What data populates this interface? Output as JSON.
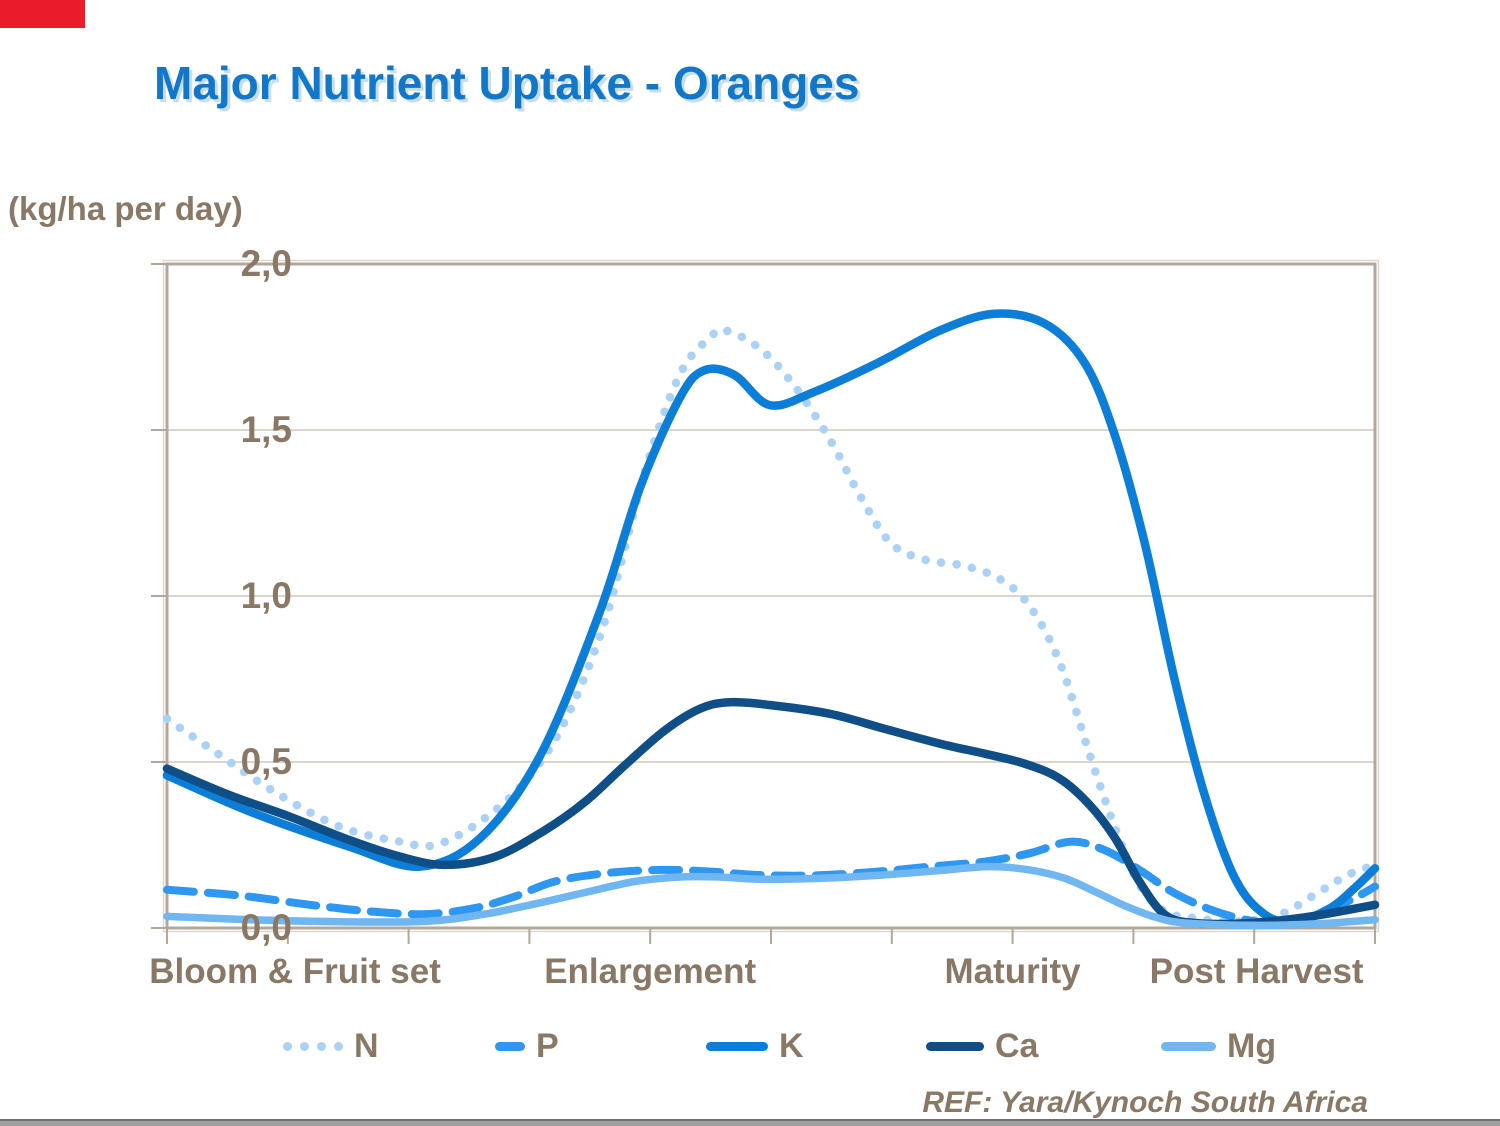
{
  "header": {
    "title": "Major Nutrient Uptake - Oranges"
  },
  "axis": {
    "unit_label": "(kg/ha per day)"
  },
  "footer": {
    "ref": "REF: Yara/Kynoch South Africa"
  },
  "colors": {
    "title_blue": "#1277c9",
    "text_brown": "#8a7866",
    "plot_border": "#b1a79a",
    "plot_border_outer": "#ddd7cd",
    "grid_line": "#cfc7bc",
    "footer_bar_dark": "#6f6f6f",
    "footer_bar_light": "#a0a0a0",
    "brand_block_red": "#ea1c2c"
  },
  "legend": {
    "items": [
      {
        "label": "N",
        "series": "N"
      },
      {
        "label": "P",
        "series": "P"
      },
      {
        "label": "K",
        "series": "K"
      },
      {
        "label": "Ca",
        "series": "Ca"
      },
      {
        "label": "Mg",
        "series": "Mg"
      }
    ]
  },
  "chart_data": {
    "type": "line",
    "title": "Major Nutrient Uptake - Oranges",
    "xlabel": "",
    "ylabel": "(kg/ha per day)",
    "ylim": [
      0,
      2.0
    ],
    "ytick_values": [
      0,
      0.5,
      1.0,
      1.5,
      2.0
    ],
    "ytick_labels": [
      "0,0",
      "0,5",
      "1,0",
      "1,5",
      "2,0"
    ],
    "grid_values": [
      0.5,
      1.0,
      1.5
    ],
    "grid": true,
    "legend_position": "bottom",
    "x_axis": {
      "range_percent": [
        0,
        100
      ],
      "minor_tick_step_percent": 10,
      "stages": [
        {
          "label": "Bloom & Fruit set",
          "center_percent": 10.6
        },
        {
          "label": "Enlargement",
          "center_percent": 40.0
        },
        {
          "label": "Maturity",
          "center_percent": 70.0
        },
        {
          "label": "Post Harvest",
          "center_percent": 90.2
        }
      ]
    },
    "series": [
      {
        "name": "N",
        "color": "#abd2f5",
        "style": "dotted",
        "points": [
          [
            0,
            0.63
          ],
          [
            4,
            0.53
          ],
          [
            8.9,
            0.41
          ],
          [
            14.3,
            0.305
          ],
          [
            19.3,
            0.26
          ],
          [
            22.2,
            0.25
          ],
          [
            25.9,
            0.32
          ],
          [
            29.6,
            0.44
          ],
          [
            32.9,
            0.62
          ],
          [
            36.3,
            0.93
          ],
          [
            39.6,
            1.38
          ],
          [
            42.5,
            1.67
          ],
          [
            45,
            1.78
          ],
          [
            46.2,
            1.8
          ],
          [
            49.1,
            1.745
          ],
          [
            52,
            1.63
          ],
          [
            54.9,
            1.47
          ],
          [
            57.4,
            1.3
          ],
          [
            59.9,
            1.16
          ],
          [
            62.7,
            1.11
          ],
          [
            66.1,
            1.09
          ],
          [
            69,
            1.05
          ],
          [
            71.4,
            0.97
          ],
          [
            73.9,
            0.8
          ],
          [
            76.4,
            0.52
          ],
          [
            78.5,
            0.3
          ],
          [
            80.5,
            0.13
          ],
          [
            82.6,
            0.05
          ],
          [
            85.1,
            0.03
          ],
          [
            88.8,
            0.02
          ],
          [
            92.1,
            0.04
          ],
          [
            95,
            0.1
          ],
          [
            97.5,
            0.155
          ],
          [
            99.2,
            0.18
          ],
          [
            100,
            0.185
          ]
        ]
      },
      {
        "name": "P",
        "color": "#2e97f2",
        "style": "dashed",
        "points": [
          [
            0,
            0.115
          ],
          [
            6,
            0.098
          ],
          [
            11.8,
            0.07
          ],
          [
            16.8,
            0.05
          ],
          [
            21.4,
            0.042
          ],
          [
            25.5,
            0.06
          ],
          [
            28.8,
            0.095
          ],
          [
            32.1,
            0.14
          ],
          [
            36.3,
            0.165
          ],
          [
            40.8,
            0.175
          ],
          [
            45,
            0.17
          ],
          [
            48.7,
            0.16
          ],
          [
            53.2,
            0.158
          ],
          [
            58.2,
            0.168
          ],
          [
            63.2,
            0.185
          ],
          [
            67.7,
            0.2
          ],
          [
            71.4,
            0.225
          ],
          [
            74.8,
            0.26
          ],
          [
            77.6,
            0.235
          ],
          [
            80.5,
            0.175
          ],
          [
            83.4,
            0.105
          ],
          [
            86.8,
            0.05
          ],
          [
            90.1,
            0.02
          ],
          [
            93,
            0.015
          ],
          [
            95.9,
            0.05
          ],
          [
            98.3,
            0.09
          ],
          [
            100,
            0.125
          ]
        ]
      },
      {
        "name": "K",
        "color": "#0d7ed7",
        "style": "solid",
        "points": [
          [
            0,
            0.46
          ],
          [
            6.9,
            0.35
          ],
          [
            15.1,
            0.245
          ],
          [
            20.9,
            0.185
          ],
          [
            25.9,
            0.27
          ],
          [
            30.9,
            0.52
          ],
          [
            35.8,
            0.95
          ],
          [
            39.2,
            1.33
          ],
          [
            42.5,
            1.6
          ],
          [
            44.5,
            1.68
          ],
          [
            47,
            1.665
          ],
          [
            49.9,
            1.575
          ],
          [
            53.6,
            1.615
          ],
          [
            59,
            1.705
          ],
          [
            64,
            1.8
          ],
          [
            68.5,
            1.85
          ],
          [
            72.7,
            1.82
          ],
          [
            76,
            1.7
          ],
          [
            78.5,
            1.48
          ],
          [
            81,
            1.15
          ],
          [
            83.4,
            0.75
          ],
          [
            85.9,
            0.4
          ],
          [
            88.4,
            0.15
          ],
          [
            90.9,
            0.04
          ],
          [
            93.4,
            0.02
          ],
          [
            96.3,
            0.06
          ],
          [
            98.3,
            0.12
          ],
          [
            100,
            0.18
          ]
        ]
      },
      {
        "name": "Ca",
        "color": "#0f4e87",
        "style": "solid",
        "points": [
          [
            0,
            0.48
          ],
          [
            5.2,
            0.4
          ],
          [
            10.2,
            0.335
          ],
          [
            15.1,
            0.265
          ],
          [
            19.3,
            0.215
          ],
          [
            23,
            0.19
          ],
          [
            27.2,
            0.215
          ],
          [
            31.3,
            0.295
          ],
          [
            34.6,
            0.38
          ],
          [
            37.9,
            0.49
          ],
          [
            41.2,
            0.595
          ],
          [
            44.1,
            0.66
          ],
          [
            46.6,
            0.68
          ],
          [
            50.3,
            0.67
          ],
          [
            54.9,
            0.645
          ],
          [
            59.4,
            0.6
          ],
          [
            64,
            0.555
          ],
          [
            67.7,
            0.525
          ],
          [
            71,
            0.495
          ],
          [
            73.9,
            0.45
          ],
          [
            76.4,
            0.37
          ],
          [
            78.5,
            0.27
          ],
          [
            80.5,
            0.14
          ],
          [
            82.6,
            0.04
          ],
          [
            85.1,
            0.015
          ],
          [
            89.7,
            0.015
          ],
          [
            93.8,
            0.03
          ],
          [
            97.1,
            0.05
          ],
          [
            100,
            0.07
          ]
        ]
      },
      {
        "name": "Mg",
        "color": "#70b6f0",
        "style": "solid",
        "points": [
          [
            0,
            0.035
          ],
          [
            6.9,
            0.025
          ],
          [
            14.3,
            0.019
          ],
          [
            21.4,
            0.02
          ],
          [
            26.3,
            0.042
          ],
          [
            30.5,
            0.073
          ],
          [
            34.6,
            0.107
          ],
          [
            38.7,
            0.14
          ],
          [
            42.1,
            0.153
          ],
          [
            45.4,
            0.154
          ],
          [
            49.1,
            0.147
          ],
          [
            53.6,
            0.149
          ],
          [
            58.6,
            0.158
          ],
          [
            63.6,
            0.172
          ],
          [
            68.1,
            0.185
          ],
          [
            71.4,
            0.175
          ],
          [
            74.3,
            0.15
          ],
          [
            76.8,
            0.11
          ],
          [
            79.3,
            0.067
          ],
          [
            81.8,
            0.033
          ],
          [
            84.3,
            0.015
          ],
          [
            90.1,
            0.008
          ],
          [
            95.4,
            0.013
          ],
          [
            100,
            0.025
          ]
        ]
      }
    ]
  }
}
